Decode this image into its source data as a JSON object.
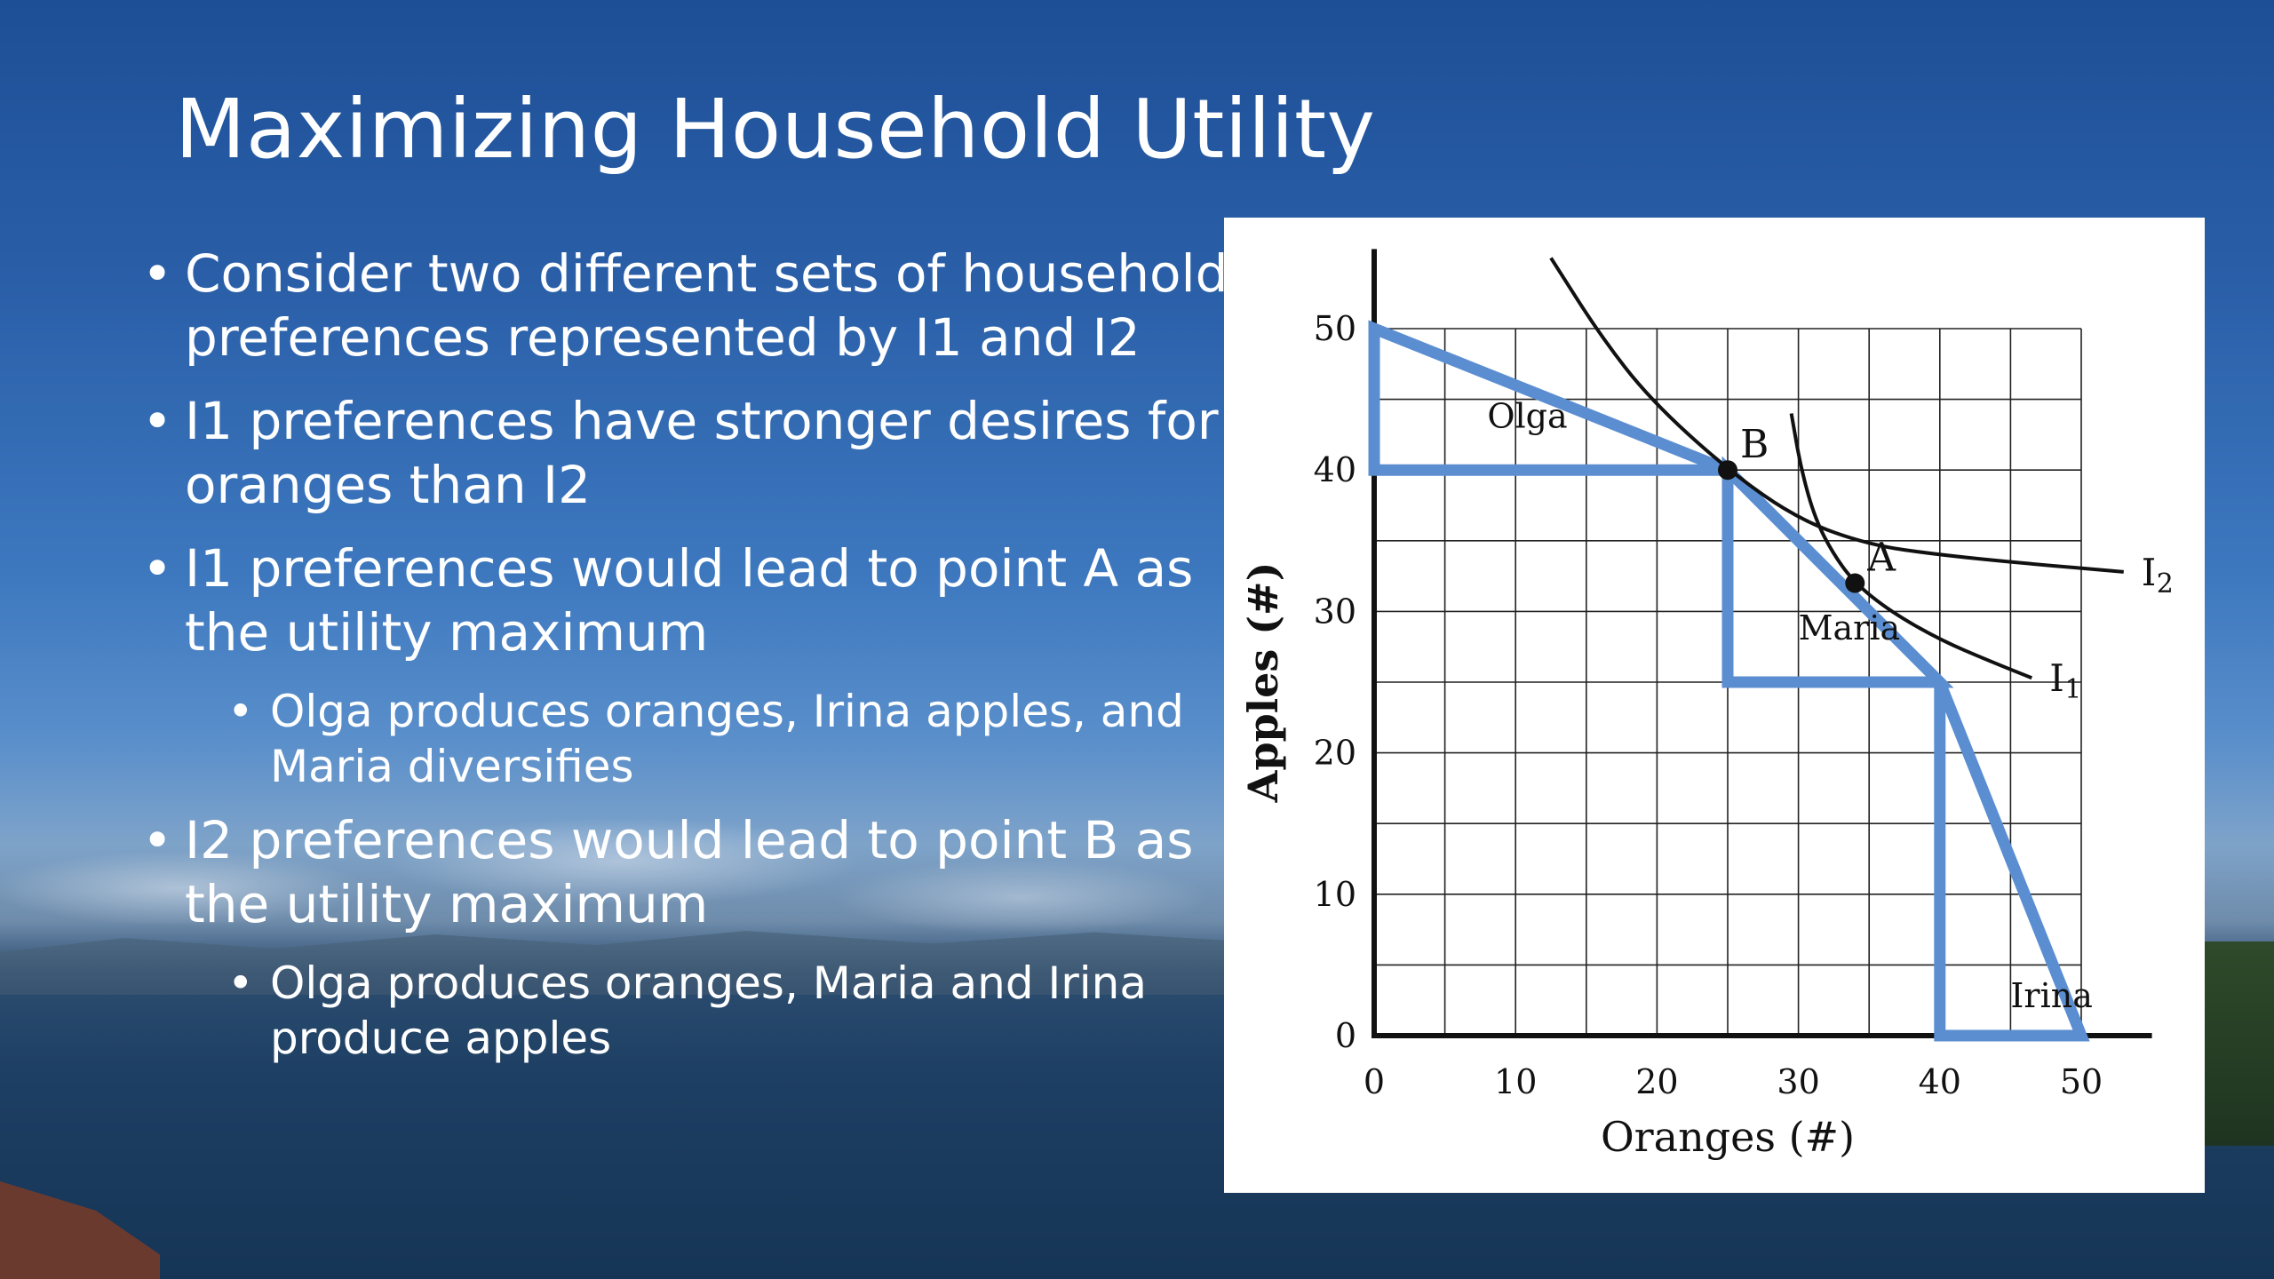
{
  "slide": {
    "title": "Maximizing Household Utility",
    "bullets": [
      {
        "text": "Consider two different sets of household preferences represented by I1 and I2"
      },
      {
        "text": "I1 preferences have stronger desires for oranges than I2"
      },
      {
        "text": "I1 preferences would lead to point A as the utility maximum",
        "sub": "Olga produces oranges, Irina apples, and Maria diversifies"
      },
      {
        "text": "I2 preferences would lead to point B as the utility maximum",
        "sub": "Olga produces oranges, Maria and Irina produce apples"
      }
    ],
    "bullet_glyph": "•"
  },
  "chart_data": {
    "type": "line",
    "title": "",
    "xlabel": "Oranges (#)",
    "ylabel": "Apples (#)",
    "xlim": [
      0,
      55
    ],
    "ylim": [
      0,
      55
    ],
    "x_ticks": [
      0,
      10,
      20,
      30,
      40,
      50
    ],
    "y_ticks": [
      0,
      10,
      20,
      30,
      40,
      50
    ],
    "grid": true,
    "grid_step": 5,
    "frontier": {
      "color": "#5b8ed1",
      "points": [
        [
          0,
          50
        ],
        [
          25,
          40
        ],
        [
          40,
          25
        ],
        [
          50,
          0
        ]
      ]
    },
    "triangles": [
      {
        "name": "Olga",
        "points": [
          [
            0,
            50
          ],
          [
            0,
            40
          ],
          [
            25,
            40
          ]
        ],
        "label_at": [
          8,
          43
        ]
      },
      {
        "name": "Maria",
        "points": [
          [
            25,
            40
          ],
          [
            25,
            25
          ],
          [
            40,
            25
          ]
        ],
        "label_at": [
          30,
          28
        ]
      },
      {
        "name": "Irina",
        "points": [
          [
            40,
            25
          ],
          [
            40,
            0
          ],
          [
            50,
            0
          ]
        ],
        "label_at": [
          45,
          2
        ]
      }
    ],
    "indifference_curves": [
      {
        "name": "I2",
        "label": "I",
        "subscript": "2",
        "points": [
          [
            12.5,
            55
          ],
          [
            16,
            49.5
          ],
          [
            19.5,
            45
          ],
          [
            25,
            40
          ],
          [
            30,
            36.5
          ],
          [
            35,
            34.7
          ],
          [
            40,
            34
          ],
          [
            46,
            33.4
          ],
          [
            53,
            32.8
          ]
        ]
      },
      {
        "name": "I1",
        "label": "I",
        "subscript": "1",
        "points": [
          [
            29.5,
            44
          ],
          [
            30.2,
            40
          ],
          [
            31.2,
            36.5
          ],
          [
            32.5,
            34
          ],
          [
            34,
            32
          ],
          [
            36.5,
            30
          ],
          [
            40,
            28
          ],
          [
            43.5,
            26.5
          ],
          [
            46.5,
            25.3
          ]
        ]
      }
    ],
    "points": [
      {
        "name": "B",
        "x": 25,
        "y": 40
      },
      {
        "name": "A",
        "x": 34,
        "y": 32
      }
    ]
  }
}
